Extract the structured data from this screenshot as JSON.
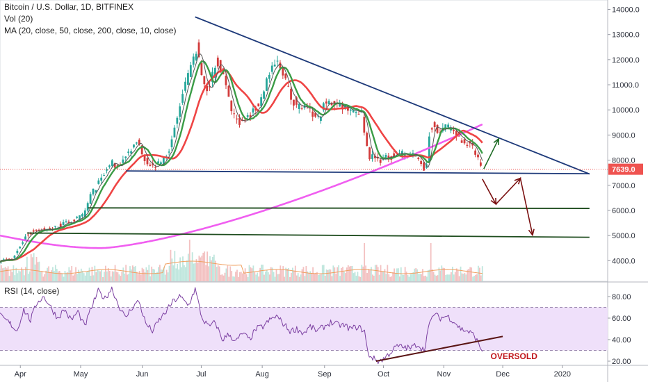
{
  "header": {
    "title": "Bitcoin / U.S. Dollar, 1D, BITFINEX",
    "vol_label": "Vol (20)",
    "ma_label": "MA (20, close, 50, close, 200, close, 10, close)",
    "rsi_label": "RSI (14, close)",
    "last_price": "7639.0",
    "annotation": "OVERSOLD"
  },
  "colors": {
    "ma_red": "#ef4444",
    "ma_green": "#3a9c46",
    "ma_magenta": "#f05ef0",
    "trend_blue": "#1e3a7a",
    "support_green": "#1f4d1f",
    "arrow_green": "#1d6b24",
    "arrow_red": "#7a1010",
    "up_candle": "#26a69a",
    "down_candle": "#d23b3b",
    "price_tag": "#ef5350",
    "rsi_line": "#7b3fa1",
    "rsi_band": "#efe0fa",
    "rsi_trend": "#5a1414",
    "oversold_text": "#c0171b"
  },
  "chart_data": [
    {
      "type": "candlestick",
      "title": "Bitcoin / U.S. Dollar, 1D, BITFINEX",
      "ylim": [
        3500,
        14300
      ],
      "y_ticks": [
        "14000.0",
        "13000.0",
        "12000.0",
        "11000.0",
        "10000.0",
        "9000.0",
        "8000.0",
        "7000.0",
        "6000.0",
        "5000.0",
        "4000.0"
      ],
      "x_ticks": [
        "Apr",
        "May",
        "Jun",
        "Jul",
        "Aug",
        "Sep",
        "Oct",
        "Nov",
        "Dec",
        "2020"
      ],
      "x_tick_days": [
        30,
        119,
        210,
        297,
        387,
        479,
        566,
        655,
        742,
        830
      ],
      "last_price": 7639.0,
      "closes_anchor": [
        [
          0,
          4000
        ],
        [
          20,
          4050
        ],
        [
          40,
          5000
        ],
        [
          55,
          5250
        ],
        [
          70,
          5200
        ],
        [
          90,
          5400
        ],
        [
          110,
          5600
        ],
        [
          125,
          5800
        ],
        [
          135,
          6600
        ],
        [
          150,
          7200
        ],
        [
          165,
          7900
        ],
        [
          175,
          7700
        ],
        [
          190,
          8300
        ],
        [
          205,
          8700
        ],
        [
          215,
          8100
        ],
        [
          225,
          7700
        ],
        [
          240,
          7900
        ],
        [
          255,
          8700
        ],
        [
          270,
          10500
        ],
        [
          285,
          11800
        ],
        [
          292,
          12500
        ],
        [
          300,
          11200
        ],
        [
          310,
          10700
        ],
        [
          320,
          12000
        ],
        [
          330,
          11500
        ],
        [
          340,
          10300
        ],
        [
          350,
          9600
        ],
        [
          360,
          9500
        ],
        [
          375,
          9900
        ],
        [
          385,
          10300
        ],
        [
          395,
          11200
        ],
        [
          410,
          11900
        ],
        [
          420,
          11500
        ],
        [
          430,
          10500
        ],
        [
          440,
          10200
        ],
        [
          455,
          10000
        ],
        [
          470,
          9600
        ],
        [
          480,
          10200
        ],
        [
          490,
          10300
        ],
        [
          500,
          10200
        ],
        [
          515,
          10100
        ],
        [
          535,
          9900
        ],
        [
          545,
          8200
        ],
        [
          560,
          8000
        ],
        [
          575,
          8100
        ],
        [
          590,
          8300
        ],
        [
          605,
          8200
        ],
        [
          620,
          8100
        ],
        [
          630,
          7500
        ],
        [
          637,
          9400
        ],
        [
          650,
          9200
        ],
        [
          665,
          9300
        ],
        [
          680,
          8900
        ],
        [
          695,
          8600
        ],
        [
          705,
          8300
        ],
        [
          712,
          7639
        ]
      ],
      "moving_averages": [
        {
          "name": "MA 10",
          "color": "#555555"
        },
        {
          "name": "MA 20",
          "color": "#3a9c46"
        },
        {
          "name": "MA 50",
          "color": "#ef4444"
        },
        {
          "name": "MA 200",
          "color": "#f05ef0"
        }
      ],
      "drawn_lines": [
        {
          "kind": "trendline",
          "from": [
            288,
            13700
          ],
          "to": [
            870,
            7450
          ],
          "color": "#1e3a7a"
        },
        {
          "kind": "support",
          "from": [
            186,
            7570
          ],
          "to": [
            870,
            7460
          ],
          "color": "#1e3a7a"
        },
        {
          "kind": "support",
          "from": [
            130,
            6100
          ],
          "to": [
            870,
            6080
          ],
          "color": "#1f4d1f"
        },
        {
          "kind": "support",
          "from": [
            40,
            5100
          ],
          "to": [
            870,
            4930
          ],
          "color": "#1f4d1f"
        }
      ],
      "arrows": [
        {
          "color": "#1d6b24",
          "points": [
            [
              714,
              7650
            ],
            [
              736,
              8850
            ]
          ]
        },
        {
          "color": "#7a1010",
          "points": [
            [
              712,
              7250
            ],
            [
              732,
              6250
            ],
            [
              768,
              7280
            ],
            [
              786,
              5020
            ]
          ]
        }
      ]
    },
    {
      "type": "bar",
      "title": "Vol (20)",
      "note": "volume bars"
    },
    {
      "type": "line",
      "title": "RSI (14, close)",
      "ylim": [
        15,
        90
      ],
      "y_ticks": [
        "80.00",
        "60.00",
        "40.00",
        "20.00"
      ],
      "bands": [
        30,
        70
      ],
      "anchors": [
        [
          0,
          62
        ],
        [
          15,
          55
        ],
        [
          25,
          48
        ],
        [
          35,
          68
        ],
        [
          45,
          58
        ],
        [
          55,
          75
        ],
        [
          65,
          80
        ],
        [
          75,
          70
        ],
        [
          85,
          60
        ],
        [
          95,
          68
        ],
        [
          105,
          58
        ],
        [
          115,
          66
        ],
        [
          125,
          52
        ],
        [
          135,
          70
        ],
        [
          145,
          85
        ],
        [
          155,
          78
        ],
        [
          165,
          88
        ],
        [
          175,
          72
        ],
        [
          185,
          60
        ],
        [
          195,
          70
        ],
        [
          205,
          76
        ],
        [
          215,
          55
        ],
        [
          225,
          48
        ],
        [
          235,
          58
        ],
        [
          245,
          66
        ],
        [
          255,
          75
        ],
        [
          265,
          80
        ],
        [
          278,
          72
        ],
        [
          288,
          87
        ],
        [
          298,
          60
        ],
        [
          308,
          52
        ],
        [
          318,
          56
        ],
        [
          328,
          40
        ],
        [
          338,
          45
        ],
        [
          348,
          38
        ],
        [
          358,
          46
        ],
        [
          368,
          40
        ],
        [
          378,
          50
        ],
        [
          388,
          52
        ],
        [
          398,
          58
        ],
        [
          408,
          62
        ],
        [
          418,
          55
        ],
        [
          428,
          48
        ],
        [
          438,
          50
        ],
        [
          448,
          46
        ],
        [
          458,
          52
        ],
        [
          468,
          48
        ],
        [
          478,
          52
        ],
        [
          488,
          56
        ],
        [
          498,
          54
        ],
        [
          508,
          53
        ],
        [
          518,
          50
        ],
        [
          528,
          52
        ],
        [
          538,
          48
        ],
        [
          543,
          27
        ],
        [
          550,
          23
        ],
        [
          558,
          20
        ],
        [
          566,
          22
        ],
        [
          576,
          28
        ],
        [
          586,
          34
        ],
        [
          596,
          33
        ],
        [
          606,
          32
        ],
        [
          616,
          36
        ],
        [
          626,
          30
        ],
        [
          632,
          50
        ],
        [
          640,
          64
        ],
        [
          650,
          60
        ],
        [
          660,
          62
        ],
        [
          670,
          57
        ],
        [
          680,
          50
        ],
        [
          690,
          48
        ],
        [
          700,
          44
        ],
        [
          712,
          29
        ]
      ],
      "trendline": {
        "from": [
          555,
          20
        ],
        "to": [
          742,
          43
        ],
        "color": "#5a1414"
      },
      "annotation": "OVERSOLD"
    }
  ]
}
